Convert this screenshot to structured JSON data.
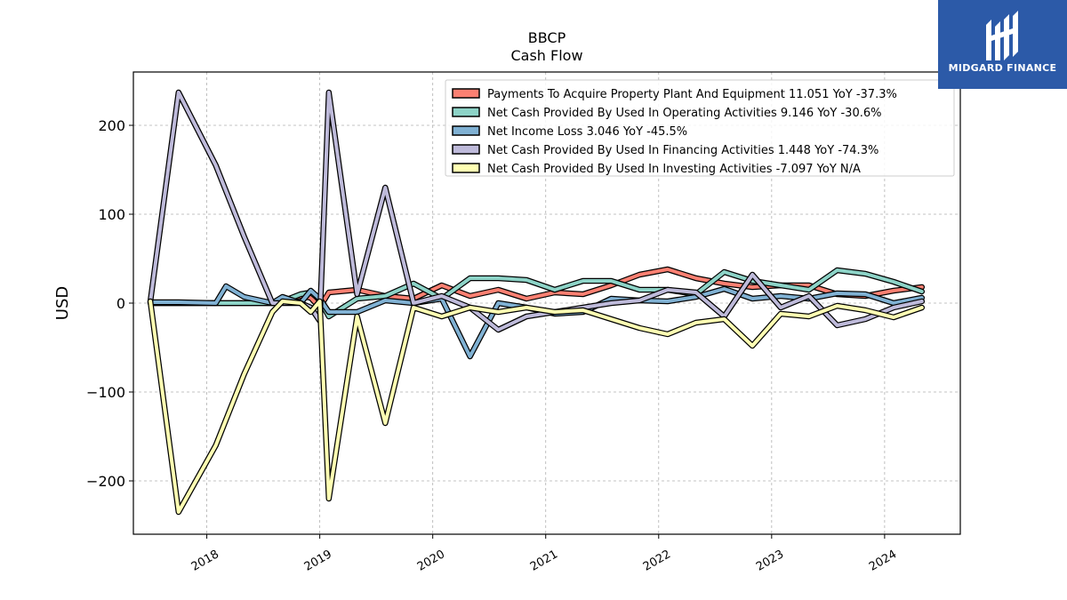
{
  "brand": {
    "name": "MIDGARD FINANCE",
    "bg": "#2c5aa8"
  },
  "chart_data": {
    "type": "line",
    "title": "BBCP",
    "subtitle": "Cash Flow",
    "ylabel": "USD",
    "xlabel": "",
    "ylim": [
      -260,
      260
    ],
    "xlim": [
      2017.35,
      2024.67
    ],
    "yticks": [
      200,
      100,
      0,
      -100,
      -200
    ],
    "ytick_labels": [
      "200",
      "100",
      "0",
      "−100",
      "−200"
    ],
    "xticks": [
      2018,
      2019,
      2020,
      2021,
      2022,
      2023,
      2024
    ],
    "xtick_labels": [
      "2018",
      "2019",
      "2020",
      "2021",
      "2022",
      "2023",
      "2024"
    ],
    "grid": true,
    "legend_position": "top-right",
    "series": [
      {
        "name": "Payments To Acquire Property Plant And Equipment  11.051 YoY -37.3%",
        "color": "#fb8072",
        "x": [
          2017.5,
          2017.75,
          2018.08,
          2018.33,
          2018.58,
          2018.67,
          2018.83,
          2018.92,
          2019.0,
          2019.08,
          2019.33,
          2019.58,
          2019.83,
          2020.08,
          2020.33,
          2020.58,
          2020.83,
          2021.08,
          2021.33,
          2021.58,
          2021.83,
          2022.08,
          2022.33,
          2022.58,
          2022.83,
          2023.08,
          2023.33,
          2023.58,
          2023.83,
          2024.08,
          2024.33
        ],
        "values": [
          0,
          0,
          0,
          0,
          0,
          2,
          8,
          6,
          -5,
          12,
          15,
          8,
          5,
          20,
          8,
          15,
          5,
          12,
          10,
          20,
          32,
          38,
          28,
          22,
          18,
          20,
          20,
          10,
          8,
          14,
          18
        ]
      },
      {
        "name": "Net Cash Provided By Used In Operating Activities  9.146 YoY -30.6%",
        "color": "#8dd3c7",
        "x": [
          2017.5,
          2017.75,
          2018.08,
          2018.33,
          2018.58,
          2018.67,
          2018.83,
          2018.92,
          2019.0,
          2019.08,
          2019.33,
          2019.58,
          2019.83,
          2020.08,
          2020.33,
          2020.58,
          2020.83,
          2021.08,
          2021.33,
          2021.58,
          2021.83,
          2022.08,
          2022.33,
          2022.58,
          2022.83,
          2023.08,
          2023.33,
          2023.58,
          2023.83,
          2024.08,
          2024.33
        ],
        "values": [
          0,
          0,
          0,
          0,
          0,
          2,
          10,
          12,
          4,
          -15,
          5,
          8,
          22,
          5,
          28,
          28,
          26,
          15,
          25,
          25,
          15,
          15,
          10,
          35,
          25,
          20,
          15,
          37,
          33,
          24,
          13
        ]
      },
      {
        "name": "Net Income Loss  3.046 YoY -45.5%",
        "color": "#80b1d3",
        "x": [
          2017.5,
          2017.75,
          2018.08,
          2018.17,
          2018.33,
          2018.58,
          2018.67,
          2018.83,
          2018.92,
          2019.0,
          2019.08,
          2019.33,
          2019.58,
          2019.83,
          2020.08,
          2020.33,
          2020.58,
          2020.83,
          2021.08,
          2021.33,
          2021.58,
          2021.83,
          2022.08,
          2022.33,
          2022.58,
          2022.83,
          2023.08,
          2023.33,
          2023.58,
          2023.83,
          2024.08,
          2024.33
        ],
        "values": [
          1,
          1,
          0,
          19,
          7,
          0,
          7,
          0,
          14,
          5,
          -10,
          -10,
          3,
          0,
          5,
          -60,
          0,
          -5,
          -12,
          -10,
          5,
          3,
          2,
          7,
          16,
          5,
          8,
          5,
          11,
          10,
          0,
          6
        ]
      },
      {
        "name": "Net Cash Provided By Used In Financing Activities  1.448 YoY -74.3%",
        "color": "#bebada",
        "x": [
          2017.5,
          2017.75,
          2018.08,
          2018.33,
          2018.58,
          2018.67,
          2018.83,
          2018.92,
          2019.0,
          2019.08,
          2019.33,
          2019.58,
          2019.83,
          2020.08,
          2020.33,
          2020.58,
          2020.83,
          2021.08,
          2021.33,
          2021.58,
          2021.83,
          2022.08,
          2022.33,
          2022.58,
          2022.83,
          2023.08,
          2023.33,
          2023.58,
          2023.83,
          2024.08,
          2024.33
        ],
        "values": [
          2,
          237,
          155,
          75,
          0,
          0,
          0,
          -5,
          -20,
          237,
          10,
          130,
          0,
          8,
          -5,
          -30,
          -15,
          -10,
          -5,
          0,
          3,
          15,
          12,
          -15,
          32,
          -5,
          8,
          -25,
          -18,
          -5,
          2
        ]
      },
      {
        "name": "Net Cash Provided By Used In Investing Activities  -7.097 YoY N/A",
        "color": "#ffffb3",
        "x": [
          2017.5,
          2017.75,
          2018.08,
          2018.33,
          2018.58,
          2018.67,
          2018.83,
          2018.92,
          2019.0,
          2019.08,
          2019.33,
          2019.58,
          2019.83,
          2020.08,
          2020.33,
          2020.58,
          2020.83,
          2021.08,
          2021.33,
          2021.58,
          2021.83,
          2022.08,
          2022.33,
          2022.58,
          2022.83,
          2023.08,
          2023.33,
          2023.58,
          2023.83,
          2024.08,
          2024.33
        ],
        "values": [
          2,
          -235,
          -160,
          -80,
          -10,
          2,
          0,
          -10,
          2,
          -220,
          -15,
          -135,
          -5,
          -15,
          -5,
          -10,
          -5,
          -10,
          -8,
          -18,
          -28,
          -35,
          -22,
          -18,
          -48,
          -12,
          -15,
          -3,
          -8,
          -16,
          -5
        ]
      }
    ]
  }
}
